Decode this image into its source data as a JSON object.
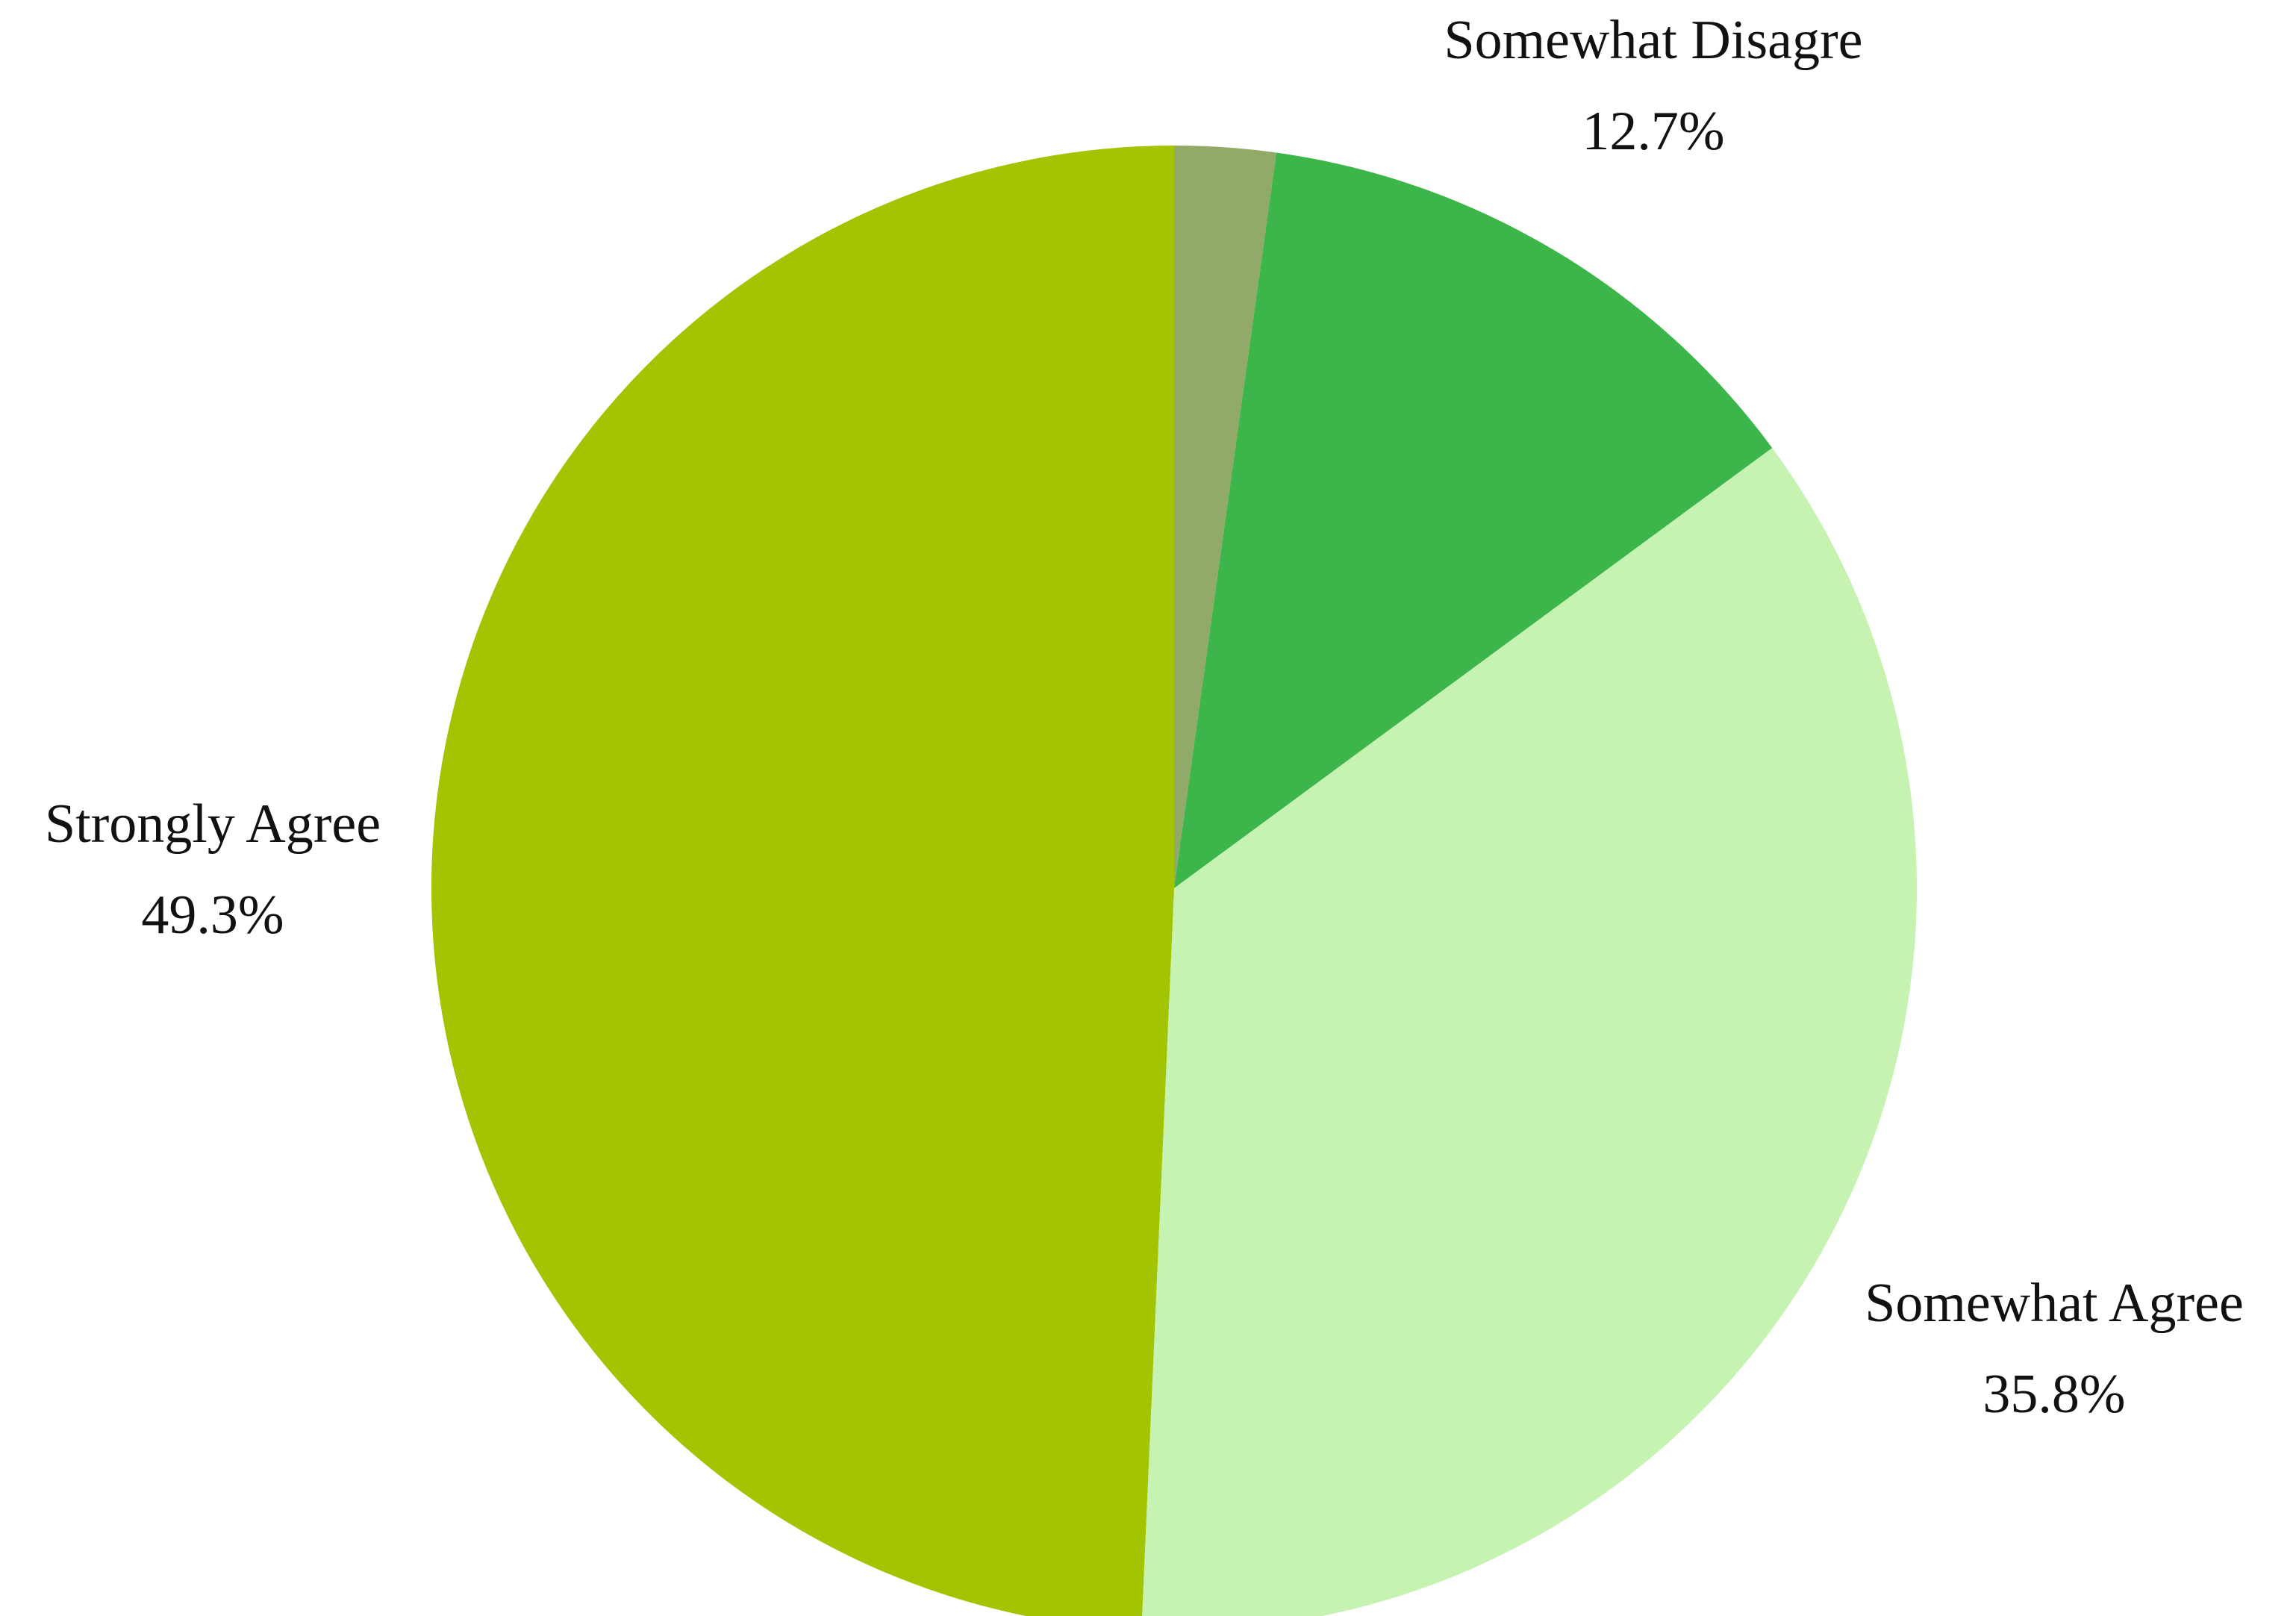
{
  "chart_data": {
    "type": "pie",
    "title": "",
    "start_angle_deg": 0,
    "direction": "clockwise",
    "slices": [
      {
        "label": "Somewhat Disagre",
        "value": 2.2,
        "display_value": "",
        "color": "#92aa68"
      },
      {
        "label": "",
        "value": 12.7,
        "display_value": "12.7%",
        "color": "#3cb54b"
      },
      {
        "label": "Somewhat Agree",
        "value": 35.8,
        "display_value": "35.8%",
        "color": "#c6f2b2"
      },
      {
        "label": "Strongly Agree",
        "value": 49.3,
        "display_value": "49.3%",
        "color": "#a3c400"
      }
    ]
  }
}
